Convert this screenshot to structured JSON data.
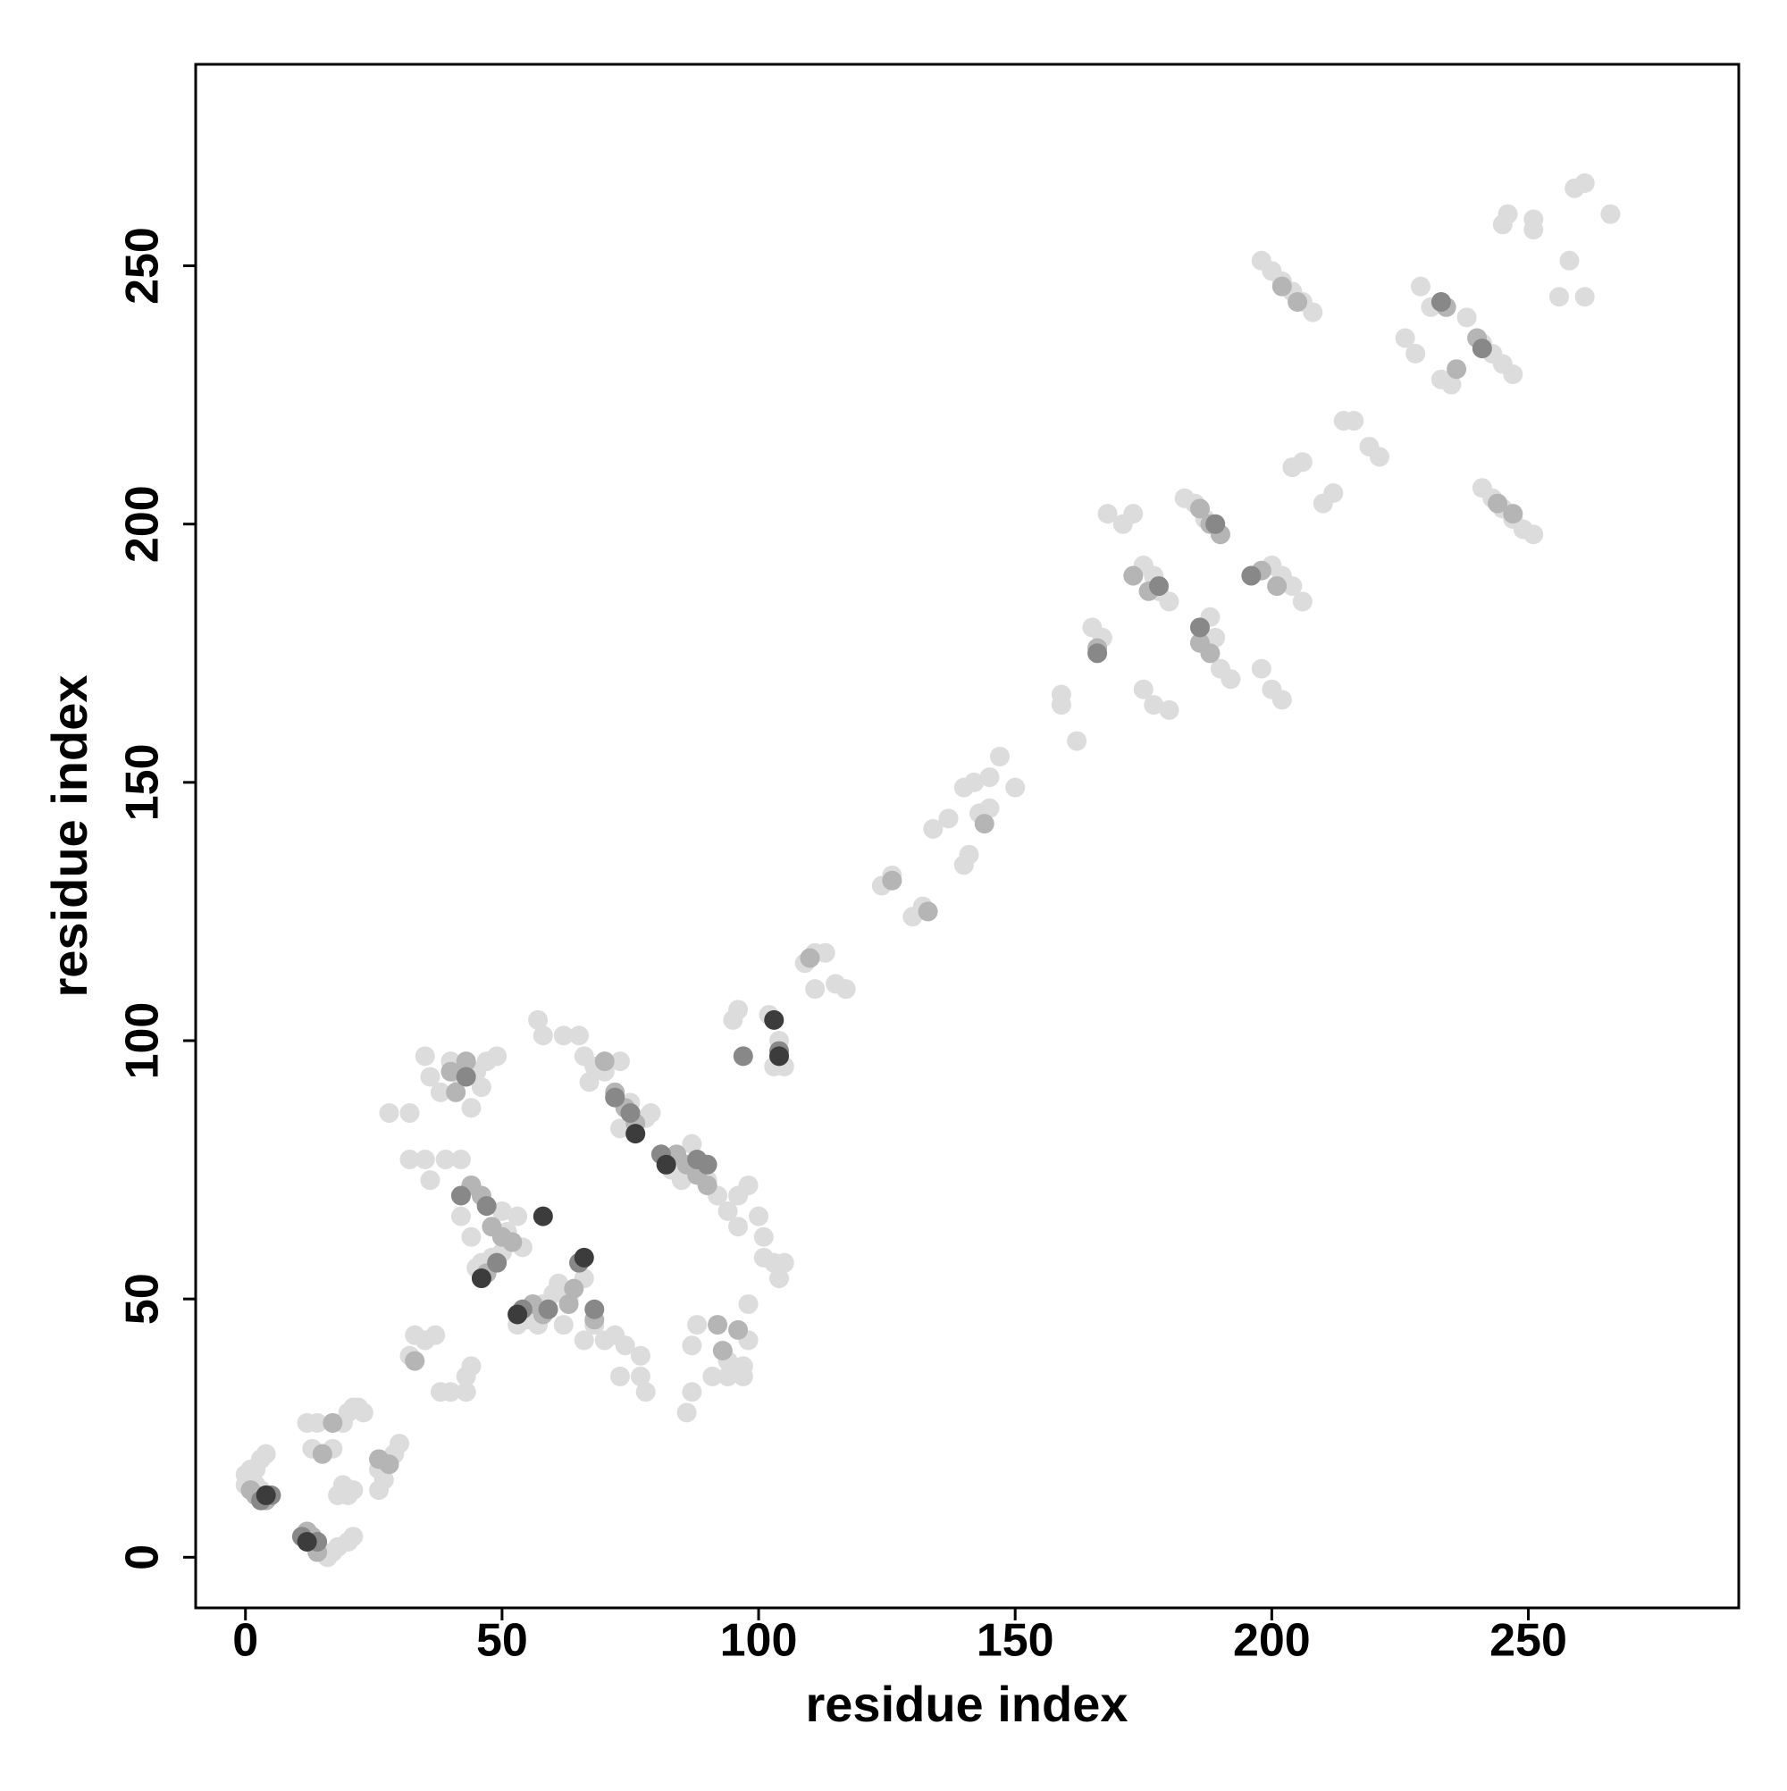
{
  "chart_data": {
    "type": "scatter",
    "x_label": "residue index",
    "y_label": "residue index",
    "xlim": [
      -9.7,
      291
    ],
    "ylim": [
      -9.8,
      289
    ],
    "xticks": [
      0,
      50,
      100,
      150,
      200,
      250
    ],
    "yticks": [
      0,
      50,
      100,
      150,
      200,
      250
    ],
    "series": [
      {
        "color": "#dcdcdc",
        "x": [
          0,
          1,
          1,
          2,
          3,
          4,
          3,
          0,
          2,
          13,
          14,
          15,
          16,
          17,
          18,
          20,
          21,
          12,
          14,
          13,
          15,
          17,
          19,
          20,
          21,
          22,
          23,
          18,
          19,
          20,
          21,
          26,
          27,
          26,
          29,
          30,
          33,
          35,
          37,
          32,
          38,
          40,
          43,
          44,
          43,
          28,
          32,
          35,
          36,
          38,
          40,
          42,
          44,
          46,
          47,
          49,
          45,
          32,
          35,
          36,
          39,
          42,
          42,
          44,
          45,
          46,
          48,
          50,
          51,
          53,
          54,
          50,
          53,
          55,
          57,
          58,
          60,
          61,
          62,
          63,
          66,
          66,
          68,
          70,
          72,
          74,
          77,
          77,
          78,
          73,
          57,
          58,
          62,
          65,
          66,
          68,
          70,
          73,
          67,
          75,
          78,
          79,
          73,
          83,
          85,
          87,
          90,
          92,
          94,
          96,
          98,
          96,
          100,
          101,
          103,
          105,
          104,
          101,
          86,
          87,
          87,
          88,
          91,
          94,
          94,
          97,
          98,
          98,
          97,
          95,
          96,
          102,
          104,
          105,
          103,
          109,
          111,
          113,
          111,
          115,
          117,
          124,
          126,
          130,
          132,
          134,
          137,
          140,
          142,
          145,
          147,
          143,
          145,
          150,
          140,
          141,
          159,
          159,
          162,
          165,
          167,
          168,
          171,
          173,
          175,
          177,
          178,
          180,
          175,
          177,
          180,
          183,
          185,
          187,
          188,
          189,
          190,
          192,
          200,
          202,
          204,
          206,
          198,
          200,
          202,
          204,
          206,
          210,
          212,
          214,
          216,
          219,
          221,
          198,
          200,
          202,
          204,
          206,
          208,
          241,
          243,
          245,
          247,
          249,
          251,
          226,
          228,
          229,
          231,
          233,
          235,
          238,
          241,
          243,
          245,
          247,
          245,
          251,
          251,
          246,
          256,
          258,
          261,
          259,
          261,
          266
        ],
        "y": [
          16,
          15,
          17,
          14,
          13,
          20,
          19,
          14,
          17,
          3,
          2,
          1,
          0,
          1,
          2,
          3,
          4,
          26,
          26,
          21,
          20,
          21,
          26,
          28,
          29,
          29,
          28,
          12,
          14,
          12,
          13,
          17,
          15,
          13,
          20,
          22,
          43,
          42,
          43,
          39,
          32,
          32,
          35,
          37,
          32,
          86,
          86,
          97,
          93,
          90,
          96,
          93,
          87,
          91,
          96,
          97,
          94,
          77,
          77,
          73,
          77,
          77,
          66,
          62,
          56,
          57,
          58,
          59,
          63,
          66,
          60,
          67,
          45,
          46,
          45,
          49,
          51,
          53,
          45,
          50,
          54,
          42,
          45,
          42,
          43,
          41,
          39,
          35,
          32,
          35,
          104,
          101,
          101,
          101,
          97,
          95,
          94,
          96,
          92,
          88,
          85,
          86,
          83,
          75,
          73,
          80,
          73,
          70,
          67,
          70,
          72,
          64,
          66,
          62,
          57,
          57,
          54,
          58,
          28,
          32,
          41,
          45,
          35,
          35,
          38,
          37,
          42,
          49,
          35,
          104,
          106,
          105,
          100,
          95,
          95,
          115,
          117,
          117,
          110,
          111,
          110,
          130,
          132,
          124,
          126,
          141,
          143,
          149,
          150,
          151,
          155,
          144,
          145,
          149,
          134,
          136,
          165,
          167,
          158,
          180,
          178,
          202,
          200,
          202,
          192,
          190,
          187,
          185,
          168,
          165,
          164,
          205,
          204,
          201,
          182,
          178,
          172,
          170,
          192,
          190,
          188,
          185,
          172,
          168,
          166,
          211,
          212,
          204,
          206,
          220,
          220,
          215,
          213,
          251,
          249,
          247,
          245,
          243,
          241,
          207,
          205,
          203,
          201,
          199,
          198,
          236,
          233,
          246,
          242,
          228,
          227,
          240,
          235,
          233,
          231,
          229,
          258,
          257,
          259,
          260,
          244,
          251,
          244,
          265,
          266,
          260
        ]
      },
      {
        "color": "#b5b5b5",
        "x": [
          1,
          2,
          4,
          12,
          13,
          14,
          15,
          17,
          26,
          28,
          33,
          40,
          43,
          41,
          44,
          46,
          48,
          47,
          50,
          52,
          56,
          58,
          63,
          64,
          68,
          70,
          72,
          74,
          76,
          84,
          86,
          88,
          90,
          92,
          93,
          96,
          110,
          126,
          133,
          144,
          166,
          173,
          176,
          186,
          188,
          190,
          186,
          188,
          198,
          201,
          202,
          205,
          234,
          240,
          236,
          244,
          247
        ],
        "y": [
          13,
          12,
          11,
          5,
          4,
          1,
          20,
          26,
          19,
          18,
          38,
          94,
          96,
          90,
          72,
          70,
          64,
          55,
          62,
          61,
          49,
          47,
          49,
          52,
          46,
          96,
          90,
          87,
          84,
          78,
          76,
          74,
          72,
          45,
          40,
          44,
          116,
          131,
          125,
          142,
          176,
          190,
          187,
          203,
          200,
          198,
          177,
          175,
          191,
          188,
          246,
          243,
          242,
          236,
          230,
          204,
          202
        ]
      },
      {
        "color": "#888888",
        "x": [
          3,
          5,
          11,
          14,
          43,
          42,
          47,
          49,
          54,
          59,
          65,
          68,
          72,
          75,
          81,
          88,
          90,
          97,
          104,
          166,
          178,
          186,
          189,
          196,
          233,
          241
        ],
        "y": [
          11,
          12,
          4,
          3,
          93,
          70,
          68,
          57,
          48,
          48,
          57,
          48,
          89,
          86,
          78,
          77,
          76,
          97,
          98,
          175,
          188,
          180,
          200,
          190,
          243,
          234
        ]
      },
      {
        "color": "#3c3c3c",
        "x": [
          4,
          12,
          46,
          53,
          58,
          66,
          76,
          82,
          103,
          104
        ],
        "y": [
          12,
          3,
          54,
          47,
          66,
          58,
          82,
          76,
          104,
          97
        ]
      }
    ]
  }
}
